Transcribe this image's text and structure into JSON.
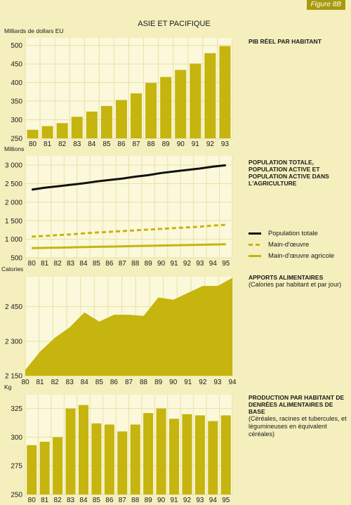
{
  "figure_label": "Figure 8B",
  "region_title": "ASIE ET PACIFIQUE",
  "colors": {
    "bar": "#c6b40f",
    "fill": "#c6b40f",
    "panel": "#fbf8db",
    "grid": "#ffffff",
    "black": "#111111"
  },
  "chart_data": [
    {
      "type": "bar",
      "title": "PIB RÉEL PAR HABITANT",
      "ylabel": "Milliards de dollars EU",
      "categories": [
        "80",
        "81",
        "82",
        "83",
        "84",
        "85",
        "86",
        "87",
        "88",
        "89",
        "90",
        "91",
        "92",
        "93"
      ],
      "values": [
        273,
        283,
        291,
        308,
        322,
        337,
        353,
        371,
        399,
        415,
        434,
        451,
        479,
        498
      ],
      "ylim": [
        250,
        520
      ],
      "yticks": [
        "250",
        "300",
        "350",
        "400",
        "450",
        "500"
      ],
      "grid": true
    },
    {
      "type": "line",
      "title": "POPULATION TOTALE, POPULATION ACTIVE ET POPULATION ACTIVE DANS L'AGRICULTURE",
      "ylabel": "Millions",
      "x": [
        "80",
        "81",
        "82",
        "83",
        "84",
        "85",
        "86",
        "87",
        "88",
        "89",
        "90",
        "91",
        "92",
        "93",
        "94",
        "95"
      ],
      "series": [
        {
          "name": "Population totale",
          "style": "solid-black",
          "values": [
            2340,
            2390,
            2430,
            2470,
            2510,
            2560,
            2600,
            2640,
            2690,
            2730,
            2790,
            2830,
            2870,
            2910,
            2960,
            3000
          ]
        },
        {
          "name": "Main-d'œuvre",
          "style": "dashed",
          "values": [
            1070,
            1090,
            1110,
            1130,
            1160,
            1180,
            1200,
            1220,
            1240,
            1260,
            1280,
            1300,
            1320,
            1340,
            1370,
            1390
          ]
        },
        {
          "name": "Main-d'œuvre agricole",
          "style": "solid",
          "values": [
            760,
            767,
            774,
            781,
            788,
            795,
            802,
            809,
            816,
            823,
            830,
            837,
            844,
            851,
            858,
            865
          ]
        }
      ],
      "ylim": [
        500,
        3250
      ],
      "yticks": [
        "500",
        "1 000",
        "1 500",
        "2 000",
        "2 500",
        "3 000"
      ],
      "grid": true
    },
    {
      "type": "area",
      "title": "APPORTS ALIMENTAIRES",
      "subtitle": "(Calories par habitant et par jour)",
      "ylabel": "Calories",
      "x": [
        "80",
        "81",
        "82",
        "83",
        "84",
        "85",
        "86",
        "87",
        "88",
        "89",
        "90",
        "91",
        "92",
        "93",
        "94"
      ],
      "values": [
        2175,
        2255,
        2315,
        2360,
        2425,
        2385,
        2415,
        2415,
        2410,
        2490,
        2480,
        2510,
        2540,
        2540,
        2575
      ],
      "ylim": [
        2150,
        2580
      ],
      "yticks": [
        "2 150",
        "2 300",
        "2 450"
      ],
      "grid": true
    },
    {
      "type": "bar",
      "title": "PRODUCTION PAR HABITANT DE DENRÉES ALIMENTAIRES DE BASE",
      "subtitle": "(Céréales, racines et tubercules, et légumineuses en équivalent céréales)",
      "ylabel": "Kg",
      "categories": [
        "80",
        "81",
        "82",
        "83",
        "84",
        "85",
        "86",
        "87",
        "88",
        "89",
        "90",
        "91",
        "92",
        "93",
        "94",
        "95"
      ],
      "values": [
        293,
        296,
        300,
        325,
        328,
        312,
        311,
        305,
        311,
        321,
        325,
        316,
        320,
        319,
        314,
        319
      ],
      "ylim": [
        250,
        337
      ],
      "yticks": [
        "250",
        "275",
        "300",
        "325"
      ],
      "grid": true
    }
  ]
}
